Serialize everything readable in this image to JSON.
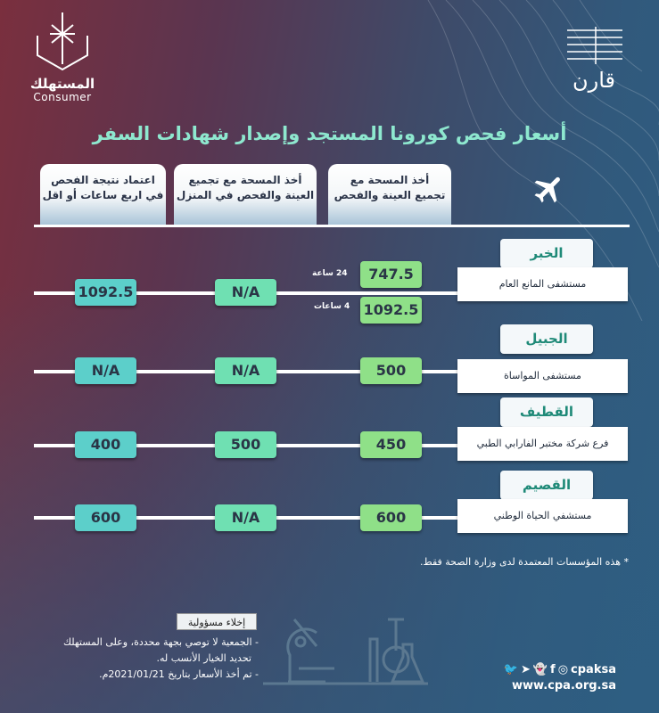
{
  "logos": {
    "consumer_ar": "المستهلك",
    "consumer_en": "Consumer",
    "qarin": "قارن"
  },
  "title": "أسعار فحص كورونا المستجد وإصدار شهادات السفر",
  "columns": [
    {
      "line1": "أخذ المسحة مع",
      "line2": "تجميع العينة والفحص"
    },
    {
      "line1": "أخذ المسحة مع تجميع",
      "line2": "العينة والفحص في المنزل"
    },
    {
      "line1": "اعتماد نتيجة الفحص",
      "line2": "في اربع ساعات أو اقل"
    }
  ],
  "icons": {
    "header": "airplane-icon",
    "illustration": "lab-equipment-icon",
    "social": [
      "twitter-icon",
      "telegram-icon",
      "snapchat-icon",
      "facebook-icon",
      "instagram-icon"
    ]
  },
  "colors": {
    "col1": "#8fe088",
    "col2": "#6fe0b2",
    "col3": "#5ccfca",
    "title": "#8ee8cf"
  },
  "regions": [
    {
      "city": "الخبر",
      "hospital": "مستشفى المانع العام",
      "col1": [
        {
          "value": "747.5",
          "note": "24 ساعة"
        },
        {
          "value": "1092.5",
          "note": "4 ساعات"
        }
      ],
      "col2": "N/A",
      "col3": "1092.5"
    },
    {
      "city": "الجبيل",
      "hospital": "مستشفى  المواساة",
      "col1": [
        {
          "value": "500"
        }
      ],
      "col2": "N/A",
      "col3": "N/A"
    },
    {
      "city": "القطيف",
      "hospital": "فرع شركة مختبر الفارابي الطبي",
      "col1": [
        {
          "value": "450"
        }
      ],
      "col2": "500",
      "col3": "400"
    },
    {
      "city": "القصيم",
      "hospital": "مستشفي الحياة الوطني",
      "col1": [
        {
          "value": "600"
        }
      ],
      "col2": "N/A",
      "col3": "600"
    }
  ],
  "footnote": "* هذه المؤسسات المعتمدة لدى وزارة الصحة فقط.",
  "disclaimer": {
    "heading": "إخلاء مسؤولية",
    "line1": "- الجمعية لا توصي بجهة محددة، وعلى المستهلك",
    "line2": "تحديد الخيار الأنسب له.",
    "line3": "- تم أخذ الأسعار بتاريخ 2021/01/21م."
  },
  "social": {
    "handle": "cpaksa",
    "website": "www.cpa.org.sa"
  }
}
